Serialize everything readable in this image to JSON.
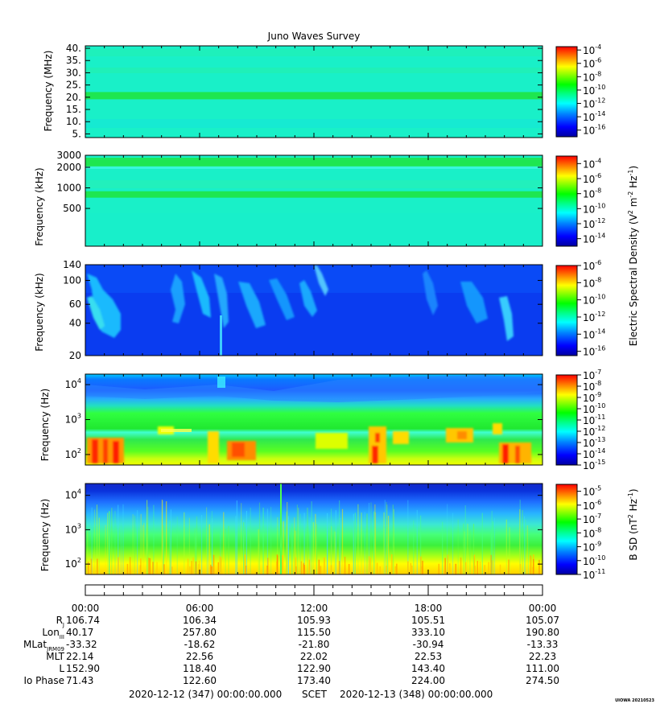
{
  "chart_data": {
    "type": "heatmap",
    "title": "Juno Waves Survey",
    "colors": {
      "spectrum": [
        "#0000a0",
        "#0000ff",
        "#0080ff",
        "#00ffff",
        "#00ff80",
        "#00ff00",
        "#80ff00",
        "#ffff00",
        "#ff8000",
        "#ff0000"
      ],
      "background_panel1": "#19f0c8",
      "background_panel3": "#0a3cf0"
    },
    "panels": [
      {
        "ylabel": "Frequency (MHz)",
        "yticks": [
          "40.",
          "35.",
          "30.",
          "25.",
          "20.",
          "15.",
          "10.",
          "5."
        ],
        "ytick_values": [
          40,
          35,
          30,
          25,
          20,
          15,
          10,
          5
        ],
        "ylim": [
          3.5,
          41
        ],
        "scale": "linear",
        "colorbar": {
          "ticks": [
            "10-4",
            "10-6",
            "10-8",
            "10-10",
            "10-12",
            "10-14",
            "10-16"
          ],
          "bases": [
            "10",
            "10",
            "10",
            "10",
            "10",
            "10",
            "10"
          ],
          "exponents": [
            "-4",
            "-6",
            "-8",
            "-10",
            "-12",
            "-14",
            "-16"
          ],
          "range": [
            -17,
            -3.5
          ]
        },
        "features": [
          {
            "name": "band",
            "value_MHz": 20.8
          }
        ]
      },
      {
        "ylabel": "Frequency (kHz)",
        "yticks": [
          "3000",
          "2000",
          "1000",
          "500"
        ],
        "ytick_values": [
          3000,
          2000,
          1000,
          500
        ],
        "ylim": [
          140,
          3000
        ],
        "scale": "log",
        "colorbar": {
          "ticks": [
            "10-4",
            "10-6",
            "10-8",
            "10-10",
            "10-12",
            "10-14"
          ],
          "bases": [
            "10",
            "10",
            "10",
            "10",
            "10",
            "10"
          ],
          "exponents": [
            "-4",
            "-6",
            "-8",
            "-10",
            "-12",
            "-14"
          ],
          "range": [
            -15,
            -3
          ]
        },
        "features": [
          {
            "name": "band",
            "value_kHz": 2300
          },
          {
            "name": "band",
            "value_kHz": 800
          }
        ]
      },
      {
        "ylabel": "Frequency (kHz)",
        "yticks": [
          "140",
          "100",
          "60",
          "40",
          "20"
        ],
        "ytick_values": [
          140,
          100,
          60,
          40,
          20
        ],
        "ylim": [
          20,
          140
        ],
        "scale": "log",
        "colorbar": {
          "ticks": [
            "10-6",
            "10-8",
            "10-10",
            "10-12",
            "10-14",
            "10-16"
          ],
          "bases": [
            "10",
            "10",
            "10",
            "10",
            "10",
            "10"
          ],
          "exponents": [
            "-6",
            "-8",
            "-10",
            "-12",
            "-14",
            "-16"
          ],
          "range": [
            -16.5,
            -6
          ]
        }
      },
      {
        "ylabel": "Frequency (Hz)",
        "yticks": [
          "10^4",
          "10^3",
          "10^2"
        ],
        "ytick_bases": [
          "10",
          "10",
          "10"
        ],
        "ytick_exponents": [
          "4",
          "3",
          "2"
        ],
        "ytick_values": [
          10000,
          1000,
          100
        ],
        "ylim": [
          50,
          20000
        ],
        "scale": "log",
        "colorbar": {
          "ticks": [
            "10-7",
            "10-8",
            "10-9",
            "10-10",
            "10-11",
            "10-12",
            "10-13",
            "10-14",
            "10-15"
          ],
          "bases": [
            "10",
            "10",
            "10",
            "10",
            "10",
            "10",
            "10",
            "10",
            "10"
          ],
          "exponents": [
            "-7",
            "-8",
            "-9",
            "-10",
            "-11",
            "-12",
            "-13",
            "-14",
            "-15"
          ],
          "range": [
            -15,
            -7
          ]
        }
      },
      {
        "ylabel": "Frequency (Hz)",
        "yticks": [
          "10^4",
          "10^3",
          "10^2"
        ],
        "ytick_bases": [
          "10",
          "10",
          "10"
        ],
        "ytick_exponents": [
          "4",
          "3",
          "2"
        ],
        "ytick_values": [
          10000,
          1000,
          100
        ],
        "ylim": [
          50,
          22000
        ],
        "scale": "log",
        "colorbar": {
          "ticks": [
            "10-5",
            "10-6",
            "10-7",
            "10-8",
            "10-9",
            "10-10",
            "10-11"
          ],
          "bases": [
            "10",
            "10",
            "10",
            "10",
            "10",
            "10",
            "10"
          ],
          "exponents": [
            "-5",
            "-6",
            "-7",
            "-8",
            "-9",
            "-10",
            "-11"
          ],
          "range": [
            -11,
            -4.5
          ]
        }
      }
    ],
    "colorbar_label_upper": {
      "text": "Electric Spectral Density (V",
      "sup1": "2",
      "mid": " m",
      "sup2": "-2",
      "mid2": " Hz",
      "sup3": "-1",
      "end": ")"
    },
    "colorbar_label_lower": {
      "text": "B SD (nT",
      "sup1": "2",
      "mid": " Hz",
      "sup2": "-1",
      "end": ")"
    },
    "x": {
      "xlim_hours": [
        0,
        24
      ],
      "ticks": [
        "00:00",
        "06:00",
        "12:00",
        "18:00",
        "00:00"
      ],
      "tick_hours": [
        0,
        6,
        12,
        18,
        24
      ]
    },
    "ephemeris": {
      "rows": [
        {
          "label": "R",
          "sub": "J",
          "values": [
            "106.74",
            "106.34",
            "105.93",
            "105.51",
            "105.07"
          ]
        },
        {
          "label": "Lon",
          "sub": "III",
          "values": [
            "40.17",
            "257.80",
            "115.50",
            "333.10",
            "190.80"
          ]
        },
        {
          "label": "MLat",
          "sub": "JRM09",
          "values": [
            "-33.32",
            "-18.62",
            "-21.80",
            "-30.94",
            "-13.33"
          ]
        },
        {
          "label": "MLT",
          "sub": "",
          "values": [
            "22.14",
            "22.56",
            "22.02",
            "22.53",
            "22.23"
          ]
        },
        {
          "label": "L",
          "sub": "",
          "values": [
            "152.90",
            "118.40",
            "122.90",
            "143.40",
            "111.00"
          ]
        },
        {
          "label": "Io Phase",
          "sub": "",
          "values": [
            "71.43",
            "122.60",
            "173.40",
            "224.00",
            "274.50"
          ]
        }
      ]
    },
    "footer": {
      "start": "2020-12-12 (347) 00:00:00.000",
      "mid": "SCET",
      "end": "2020-12-13 (348) 00:00:00.000",
      "credit": "UIOWA 20210523"
    }
  }
}
